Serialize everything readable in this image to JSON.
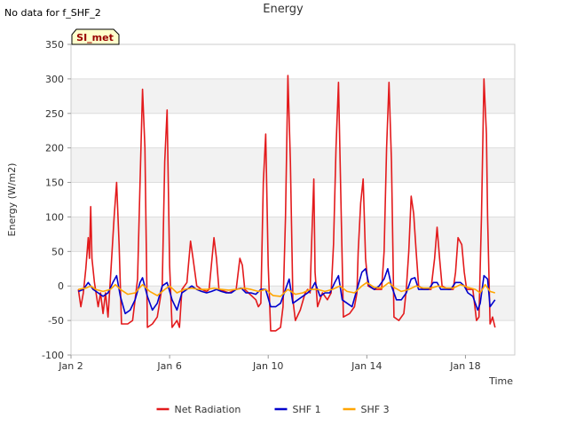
{
  "page": {
    "top_left_note": "No data for f_SHF_2",
    "site_badge": "SI_met"
  },
  "chart_data": {
    "type": "line",
    "title": "Energy",
    "xlabel": "Time",
    "ylabel": "Energy (W/m2)",
    "xlim": [
      2.0,
      20.0
    ],
    "ylim": [
      -100,
      350
    ],
    "x_unit": "day of January (fractional)",
    "yticks": [
      -100,
      -50,
      0,
      50,
      100,
      150,
      200,
      250,
      300,
      350
    ],
    "xticks": [
      {
        "value": 2,
        "label": "Jan 2"
      },
      {
        "value": 6,
        "label": "Jan 6"
      },
      {
        "value": 10,
        "label": "Jan 10"
      },
      {
        "value": 14,
        "label": "Jan 14"
      },
      {
        "value": 18,
        "label": "Jan 18"
      }
    ],
    "legend": {
      "placement": "bottom-center"
    },
    "series": [
      {
        "name": "Net Radiation",
        "color": "#e31a1c",
        "points": [
          [
            2.3,
            -5
          ],
          [
            2.4,
            -30
          ],
          [
            2.5,
            -10
          ],
          [
            2.6,
            25
          ],
          [
            2.7,
            70
          ],
          [
            2.75,
            40
          ],
          [
            2.8,
            115
          ],
          [
            2.85,
            40
          ],
          [
            2.95,
            5
          ],
          [
            3.1,
            -30
          ],
          [
            3.2,
            -10
          ],
          [
            3.3,
            -40
          ],
          [
            3.4,
            -10
          ],
          [
            3.5,
            -45
          ],
          [
            3.6,
            10
          ],
          [
            3.75,
            100
          ],
          [
            3.85,
            150
          ],
          [
            3.95,
            60
          ],
          [
            4.05,
            -55
          ],
          [
            4.3,
            -55
          ],
          [
            4.5,
            -50
          ],
          [
            4.7,
            10
          ],
          [
            4.8,
            150
          ],
          [
            4.9,
            285
          ],
          [
            5.0,
            200
          ],
          [
            5.1,
            -60
          ],
          [
            5.3,
            -55
          ],
          [
            5.5,
            -45
          ],
          [
            5.7,
            0
          ],
          [
            5.8,
            180
          ],
          [
            5.9,
            255
          ],
          [
            6.0,
            30
          ],
          [
            6.1,
            -60
          ],
          [
            6.3,
            -50
          ],
          [
            6.4,
            -60
          ],
          [
            6.5,
            -5
          ],
          [
            6.7,
            5
          ],
          [
            6.85,
            65
          ],
          [
            6.95,
            40
          ],
          [
            7.1,
            0
          ],
          [
            7.3,
            -5
          ],
          [
            7.5,
            -8
          ],
          [
            7.6,
            -5
          ],
          [
            7.8,
            70
          ],
          [
            7.9,
            40
          ],
          [
            8.0,
            -5
          ],
          [
            8.4,
            -10
          ],
          [
            8.7,
            -5
          ],
          [
            8.85,
            40
          ],
          [
            8.95,
            30
          ],
          [
            9.05,
            -5
          ],
          [
            9.2,
            -10
          ],
          [
            9.5,
            -20
          ],
          [
            9.6,
            -30
          ],
          [
            9.7,
            -25
          ],
          [
            9.8,
            150
          ],
          [
            9.9,
            220
          ],
          [
            10.0,
            30
          ],
          [
            10.1,
            -65
          ],
          [
            10.3,
            -65
          ],
          [
            10.5,
            -60
          ],
          [
            10.6,
            -30
          ],
          [
            10.7,
            100
          ],
          [
            10.8,
            305
          ],
          [
            10.9,
            180
          ],
          [
            11.0,
            -20
          ],
          [
            11.1,
            -50
          ],
          [
            11.3,
            -35
          ],
          [
            11.5,
            -10
          ],
          [
            11.6,
            -5
          ],
          [
            11.7,
            -10
          ],
          [
            11.75,
            50
          ],
          [
            11.85,
            155
          ],
          [
            11.9,
            20
          ],
          [
            12.0,
            -30
          ],
          [
            12.2,
            -10
          ],
          [
            12.4,
            -20
          ],
          [
            12.55,
            -10
          ],
          [
            12.65,
            60
          ],
          [
            12.75,
            200
          ],
          [
            12.85,
            295
          ],
          [
            12.95,
            120
          ],
          [
            13.05,
            -45
          ],
          [
            13.3,
            -40
          ],
          [
            13.5,
            -30
          ],
          [
            13.6,
            -10
          ],
          [
            13.65,
            50
          ],
          [
            13.75,
            120
          ],
          [
            13.85,
            155
          ],
          [
            13.95,
            40
          ],
          [
            14.05,
            0
          ],
          [
            14.3,
            -5
          ],
          [
            14.6,
            -5
          ],
          [
            14.7,
            50
          ],
          [
            14.8,
            200
          ],
          [
            14.9,
            295
          ],
          [
            15.0,
            180
          ],
          [
            15.1,
            -45
          ],
          [
            15.3,
            -50
          ],
          [
            15.5,
            -40
          ],
          [
            15.6,
            -5
          ],
          [
            15.7,
            50
          ],
          [
            15.8,
            130
          ],
          [
            15.9,
            105
          ],
          [
            16.0,
            50
          ],
          [
            16.1,
            0
          ],
          [
            16.3,
            -5
          ],
          [
            16.6,
            -5
          ],
          [
            16.75,
            40
          ],
          [
            16.85,
            85
          ],
          [
            16.95,
            40
          ],
          [
            17.05,
            0
          ],
          [
            17.3,
            -5
          ],
          [
            17.5,
            -5
          ],
          [
            17.6,
            20
          ],
          [
            17.7,
            70
          ],
          [
            17.85,
            60
          ],
          [
            17.95,
            20
          ],
          [
            18.05,
            -5
          ],
          [
            18.3,
            -5
          ],
          [
            18.45,
            -50
          ],
          [
            18.55,
            -45
          ],
          [
            18.65,
            100
          ],
          [
            18.75,
            300
          ],
          [
            18.85,
            220
          ],
          [
            18.9,
            100
          ],
          [
            19.0,
            -55
          ],
          [
            19.1,
            -45
          ],
          [
            19.2,
            -60
          ]
        ]
      },
      {
        "name": "SHF 1",
        "color": "#0000cc",
        "points": [
          [
            2.3,
            -8
          ],
          [
            2.5,
            -5
          ],
          [
            2.7,
            5
          ],
          [
            2.9,
            -5
          ],
          [
            3.1,
            -10
          ],
          [
            3.3,
            -15
          ],
          [
            3.5,
            -10
          ],
          [
            3.7,
            5
          ],
          [
            3.85,
            15
          ],
          [
            4.0,
            -15
          ],
          [
            4.2,
            -40
          ],
          [
            4.4,
            -35
          ],
          [
            4.6,
            -20
          ],
          [
            4.8,
            5
          ],
          [
            4.9,
            12
          ],
          [
            5.1,
            -15
          ],
          [
            5.3,
            -35
          ],
          [
            5.5,
            -25
          ],
          [
            5.7,
            0
          ],
          [
            5.9,
            5
          ],
          [
            6.1,
            -20
          ],
          [
            6.3,
            -35
          ],
          [
            6.5,
            -10
          ],
          [
            6.7,
            -5
          ],
          [
            6.9,
            0
          ],
          [
            7.1,
            -5
          ],
          [
            7.3,
            -8
          ],
          [
            7.5,
            -10
          ],
          [
            7.7,
            -8
          ],
          [
            7.9,
            -5
          ],
          [
            8.1,
            -8
          ],
          [
            8.3,
            -10
          ],
          [
            8.5,
            -10
          ],
          [
            8.7,
            -5
          ],
          [
            8.9,
            -3
          ],
          [
            9.1,
            -10
          ],
          [
            9.3,
            -10
          ],
          [
            9.5,
            -12
          ],
          [
            9.7,
            -5
          ],
          [
            9.9,
            -5
          ],
          [
            10.1,
            -30
          ],
          [
            10.3,
            -30
          ],
          [
            10.5,
            -25
          ],
          [
            10.7,
            -5
          ],
          [
            10.85,
            10
          ],
          [
            11.0,
            -25
          ],
          [
            11.2,
            -20
          ],
          [
            11.4,
            -15
          ],
          [
            11.6,
            -10
          ],
          [
            11.75,
            -5
          ],
          [
            11.9,
            5
          ],
          [
            12.1,
            -15
          ],
          [
            12.3,
            -10
          ],
          [
            12.5,
            -10
          ],
          [
            12.7,
            5
          ],
          [
            12.85,
            15
          ],
          [
            13.0,
            -20
          ],
          [
            13.2,
            -25
          ],
          [
            13.4,
            -30
          ],
          [
            13.6,
            -5
          ],
          [
            13.8,
            20
          ],
          [
            13.95,
            25
          ],
          [
            14.1,
            0
          ],
          [
            14.3,
            -5
          ],
          [
            14.5,
            0
          ],
          [
            14.7,
            10
          ],
          [
            14.85,
            25
          ],
          [
            15.0,
            0
          ],
          [
            15.2,
            -20
          ],
          [
            15.4,
            -20
          ],
          [
            15.6,
            -10
          ],
          [
            15.8,
            10
          ],
          [
            15.95,
            12
          ],
          [
            16.1,
            -5
          ],
          [
            16.3,
            -5
          ],
          [
            16.5,
            -5
          ],
          [
            16.7,
            5
          ],
          [
            16.85,
            5
          ],
          [
            17.0,
            -5
          ],
          [
            17.2,
            -5
          ],
          [
            17.4,
            -5
          ],
          [
            17.6,
            5
          ],
          [
            17.8,
            5
          ],
          [
            17.95,
            0
          ],
          [
            18.1,
            -10
          ],
          [
            18.3,
            -15
          ],
          [
            18.5,
            -35
          ],
          [
            18.6,
            -25
          ],
          [
            18.75,
            15
          ],
          [
            18.9,
            10
          ],
          [
            19.0,
            -30
          ],
          [
            19.1,
            -25
          ],
          [
            19.2,
            -20
          ]
        ]
      },
      {
        "name": "SHF 3",
        "color": "#ffa500",
        "points": [
          [
            2.3,
            -5
          ],
          [
            2.6,
            -3
          ],
          [
            2.8,
            0
          ],
          [
            3.0,
            -5
          ],
          [
            3.3,
            -8
          ],
          [
            3.6,
            -5
          ],
          [
            3.8,
            2
          ],
          [
            4.0,
            -5
          ],
          [
            4.3,
            -12
          ],
          [
            4.6,
            -10
          ],
          [
            4.9,
            2
          ],
          [
            5.2,
            -8
          ],
          [
            5.5,
            -14
          ],
          [
            5.8,
            -5
          ],
          [
            6.0,
            0
          ],
          [
            6.3,
            -10
          ],
          [
            6.6,
            -5
          ],
          [
            6.9,
            -3
          ],
          [
            7.2,
            -5
          ],
          [
            7.5,
            -5
          ],
          [
            7.8,
            -3
          ],
          [
            8.1,
            -5
          ],
          [
            8.4,
            -6
          ],
          [
            8.7,
            -5
          ],
          [
            9.0,
            -3
          ],
          [
            9.3,
            -5
          ],
          [
            9.6,
            -8
          ],
          [
            9.9,
            -5
          ],
          [
            10.2,
            -14
          ],
          [
            10.5,
            -15
          ],
          [
            10.8,
            -5
          ],
          [
            11.1,
            -12
          ],
          [
            11.4,
            -10
          ],
          [
            11.7,
            -5
          ],
          [
            12.0,
            -5
          ],
          [
            12.3,
            -8
          ],
          [
            12.6,
            -5
          ],
          [
            12.9,
            0
          ],
          [
            13.2,
            -8
          ],
          [
            13.5,
            -10
          ],
          [
            13.8,
            0
          ],
          [
            14.0,
            5
          ],
          [
            14.3,
            -2
          ],
          [
            14.6,
            -3
          ],
          [
            14.9,
            5
          ],
          [
            15.1,
            -2
          ],
          [
            15.4,
            -8
          ],
          [
            15.7,
            -5
          ],
          [
            16.0,
            0
          ],
          [
            16.3,
            -3
          ],
          [
            16.6,
            -3
          ],
          [
            16.9,
            0
          ],
          [
            17.2,
            -3
          ],
          [
            17.5,
            -3
          ],
          [
            17.8,
            2
          ],
          [
            18.1,
            -2
          ],
          [
            18.4,
            -5
          ],
          [
            18.6,
            -10
          ],
          [
            18.8,
            2
          ],
          [
            19.0,
            -8
          ],
          [
            19.2,
            -10
          ]
        ]
      }
    ]
  }
}
